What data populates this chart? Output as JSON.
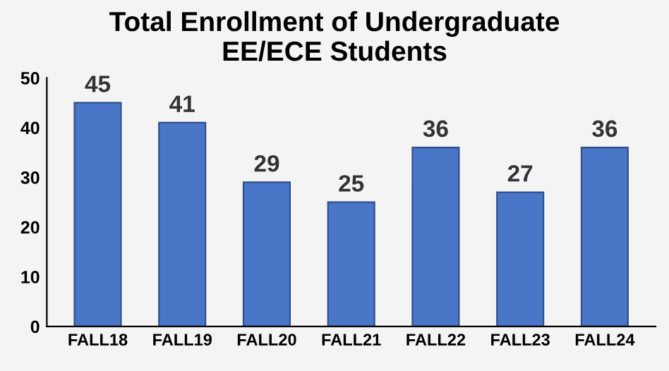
{
  "chart_data": {
    "type": "bar",
    "title": "Total Enrollment of Undergraduate\nEE/ECE Students",
    "categories": [
      "FALL18",
      "FALL19",
      "FALL20",
      "FALL21",
      "FALL22",
      "FALL23",
      "FALL24"
    ],
    "values": [
      45,
      41,
      29,
      25,
      36,
      27,
      36
    ],
    "color": "#4a76c8",
    "ylim": [
      0,
      50
    ],
    "yticks": [
      0,
      10,
      20,
      30,
      40,
      50
    ],
    "grid": false,
    "data_labels": true
  }
}
